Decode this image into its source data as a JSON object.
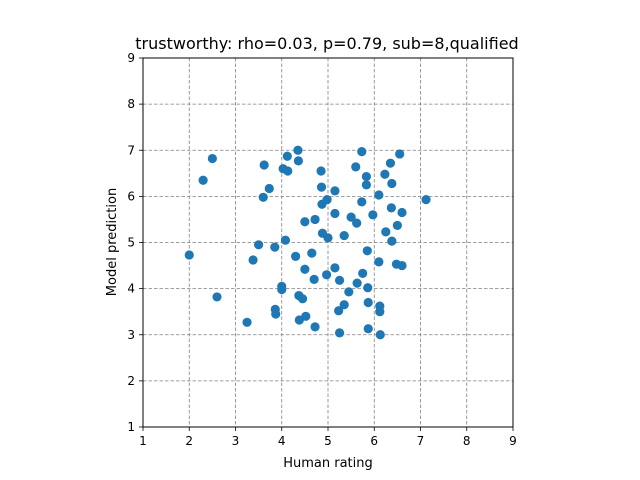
{
  "chart_data": {
    "type": "scatter",
    "title": "trustworthy: rho=0.03, p=0.79, sub=8,qualified",
    "xlabel": "Human rating",
    "ylabel": "Model prediction",
    "xlim": [
      1,
      9
    ],
    "ylim": [
      1,
      9
    ],
    "xticks": [
      "1",
      "2",
      "3",
      "4",
      "5",
      "6",
      "7",
      "8",
      "9"
    ],
    "yticks": [
      "1",
      "2",
      "3",
      "4",
      "5",
      "6",
      "7",
      "8",
      "9"
    ],
    "grid": true,
    "point_color": "#1f77b4",
    "points": [
      [
        2.0,
        4.73
      ],
      [
        2.3,
        6.35
      ],
      [
        2.5,
        6.82
      ],
      [
        2.6,
        3.82
      ],
      [
        3.25,
        3.27
      ],
      [
        3.38,
        4.62
      ],
      [
        3.5,
        4.95
      ],
      [
        3.6,
        5.98
      ],
      [
        3.62,
        6.68
      ],
      [
        3.73,
        6.17
      ],
      [
        3.85,
        4.9
      ],
      [
        3.86,
        3.55
      ],
      [
        3.87,
        3.45
      ],
      [
        4.0,
        4.05
      ],
      [
        4.0,
        3.98
      ],
      [
        4.03,
        6.6
      ],
      [
        4.08,
        5.05
      ],
      [
        4.12,
        6.87
      ],
      [
        4.13,
        6.55
      ],
      [
        4.3,
        4.7
      ],
      [
        4.35,
        7.0
      ],
      [
        4.36,
        6.77
      ],
      [
        4.37,
        3.85
      ],
      [
        4.38,
        3.32
      ],
      [
        4.45,
        3.78
      ],
      [
        4.5,
        5.45
      ],
      [
        4.5,
        4.42
      ],
      [
        4.52,
        3.4
      ],
      [
        4.65,
        4.77
      ],
      [
        4.7,
        4.2
      ],
      [
        4.72,
        3.17
      ],
      [
        4.72,
        5.5
      ],
      [
        4.85,
        6.55
      ],
      [
        4.86,
        6.2
      ],
      [
        4.87,
        5.83
      ],
      [
        4.88,
        5.2
      ],
      [
        4.97,
        4.3
      ],
      [
        4.98,
        5.93
      ],
      [
        5.0,
        5.1
      ],
      [
        5.15,
        6.12
      ],
      [
        5.15,
        5.63
      ],
      [
        5.15,
        4.45
      ],
      [
        5.23,
        3.52
      ],
      [
        5.25,
        3.04
      ],
      [
        5.25,
        4.18
      ],
      [
        5.35,
        5.15
      ],
      [
        5.35,
        3.65
      ],
      [
        5.45,
        3.93
      ],
      [
        5.5,
        5.55
      ],
      [
        5.6,
        6.64
      ],
      [
        5.62,
        5.42
      ],
      [
        5.63,
        4.12
      ],
      [
        5.73,
        6.97
      ],
      [
        5.73,
        5.88
      ],
      [
        5.75,
        4.33
      ],
      [
        5.83,
        6.43
      ],
      [
        5.83,
        6.25
      ],
      [
        5.85,
        4.82
      ],
      [
        5.86,
        4.02
      ],
      [
        5.87,
        3.7
      ],
      [
        5.87,
        3.13
      ],
      [
        5.97,
        5.6
      ],
      [
        6.1,
        6.03
      ],
      [
        6.1,
        4.58
      ],
      [
        6.12,
        3.62
      ],
      [
        6.12,
        3.5
      ],
      [
        6.13,
        3.0
      ],
      [
        6.23,
        6.48
      ],
      [
        6.25,
        5.23
      ],
      [
        6.35,
        6.72
      ],
      [
        6.37,
        5.75
      ],
      [
        6.38,
        6.28
      ],
      [
        6.38,
        5.03
      ],
      [
        6.48,
        4.53
      ],
      [
        6.5,
        5.37
      ],
      [
        6.55,
        6.92
      ],
      [
        6.6,
        5.65
      ],
      [
        6.6,
        4.5
      ],
      [
        7.12,
        5.93
      ]
    ]
  }
}
